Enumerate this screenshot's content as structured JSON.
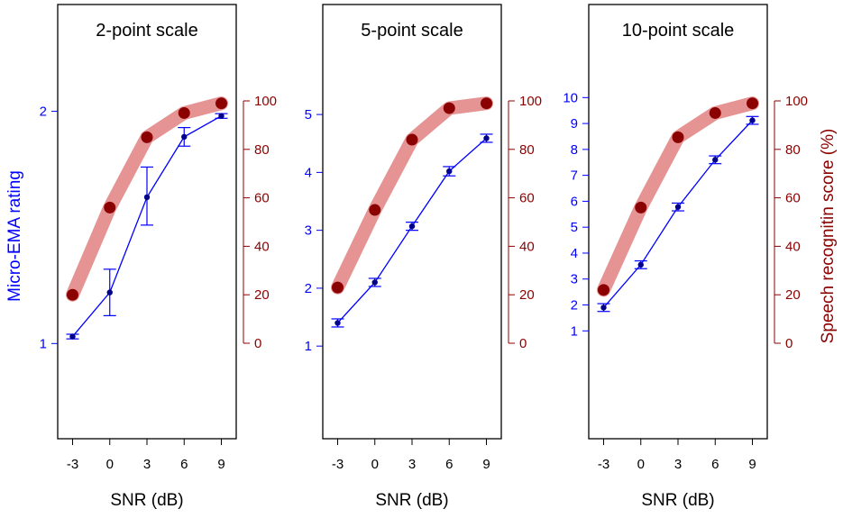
{
  "figure": {
    "left_axis_label": "Micro-EMA rating",
    "right_axis_label": "Speech recognitin score (%)",
    "colors": {
      "ema_line": "#0000FF",
      "ema_point": "#00008B",
      "speech_band": "#E08080",
      "speech_point": "#8B0000",
      "left_tick": "#0000FF",
      "right_tick": "#8B0000",
      "axis": "#000000"
    }
  },
  "chart_data": [
    {
      "type": "line",
      "title": "2-point scale",
      "xlabel": "SNR (dB)",
      "x": [
        -3,
        0,
        3,
        6,
        9
      ],
      "x_ticks": [
        "-3",
        "0",
        "3",
        "6",
        "9"
      ],
      "left_ylim": [
        0.59,
        2.46
      ],
      "left_ticks": [
        1,
        2
      ],
      "ylabel_left": "Micro-EMA rating",
      "ylabel_right": "",
      "right_ticks": [
        0,
        20,
        40,
        60,
        80,
        100
      ],
      "series": [
        {
          "name": "Micro-EMA rating",
          "axis": "left",
          "values": [
            1.03,
            1.22,
            1.63,
            1.89,
            1.98
          ],
          "err_low": [
            1.02,
            1.12,
            1.51,
            1.85,
            1.97
          ],
          "err_high": [
            1.04,
            1.32,
            1.76,
            1.93,
            1.99
          ]
        },
        {
          "name": "Speech recognition score (%)",
          "axis": "right",
          "values": [
            20,
            56,
            85,
            95,
            99
          ]
        }
      ]
    },
    {
      "type": "line",
      "title": "5-point scale",
      "xlabel": "SNR (dB)",
      "x": [
        -3,
        0,
        3,
        6,
        9
      ],
      "x_ticks": [
        "-3",
        "0",
        "3",
        "6",
        "9"
      ],
      "left_ylim": [
        -0.6,
        6.9
      ],
      "left_ticks": [
        1,
        2,
        3,
        4,
        5
      ],
      "ylabel_left": "",
      "ylabel_right": "",
      "right_ticks": [
        0,
        20,
        40,
        60,
        80,
        100
      ],
      "series": [
        {
          "name": "Micro-EMA rating",
          "axis": "left",
          "values": [
            1.4,
            2.1,
            3.07,
            4.02,
            4.59
          ],
          "err_low": [
            1.33,
            2.03,
            3.0,
            3.94,
            4.52
          ],
          "err_high": [
            1.47,
            2.17,
            3.14,
            4.1,
            4.66
          ]
        },
        {
          "name": "Speech recognition score (%)",
          "axis": "right",
          "values": [
            23,
            55,
            84,
            97,
            99
          ]
        }
      ]
    },
    {
      "type": "line",
      "title": "10-point scale",
      "xlabel": "SNR (dB)",
      "x": [
        -3,
        0,
        3,
        6,
        9
      ],
      "x_ticks": [
        "-3",
        "0",
        "3",
        "6",
        "9"
      ],
      "left_ylim": [
        -3.16,
        13.59
      ],
      "left_ticks": [
        1,
        2,
        3,
        4,
        5,
        6,
        7,
        8,
        9,
        10
      ],
      "ylabel_left": "",
      "ylabel_right": "Speech recognitin score (%)",
      "right_ticks": [
        0,
        20,
        40,
        60,
        80,
        100
      ],
      "series": [
        {
          "name": "Micro-EMA rating",
          "axis": "left",
          "values": [
            1.9,
            3.55,
            5.78,
            7.6,
            9.12
          ],
          "err_low": [
            1.75,
            3.4,
            5.63,
            7.45,
            8.97
          ],
          "err_high": [
            2.05,
            3.7,
            5.93,
            7.75,
            9.27
          ]
        },
        {
          "name": "Speech recognition score (%)",
          "axis": "right",
          "values": [
            22,
            56,
            85,
            95,
            99
          ]
        }
      ]
    }
  ]
}
